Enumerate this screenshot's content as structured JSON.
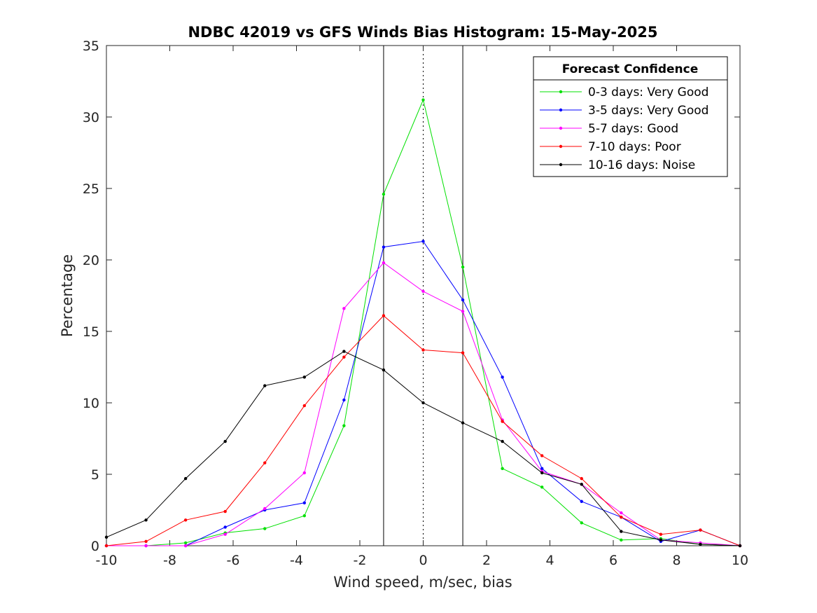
{
  "chart_data": {
    "type": "line",
    "title": "NDBC 42019 vs GFS Winds Bias Histogram: 15-May-2025",
    "xlabel": "Wind speed, m/sec, bias",
    "ylabel": "Percentage",
    "xlim": [
      -10,
      10
    ],
    "ylim": [
      0,
      35
    ],
    "xticks": [
      -10,
      -8,
      -6,
      -4,
      -2,
      0,
      2,
      4,
      6,
      8,
      10
    ],
    "yticks": [
      0,
      5,
      10,
      15,
      20,
      25,
      30,
      35
    ],
    "grid": false,
    "legend_title": "Forecast Confidence",
    "legend_position": "top-right",
    "x": [
      -10,
      -8.75,
      -7.5,
      -6.25,
      -5,
      -3.75,
      -2.5,
      -1.25,
      0,
      1.25,
      2.5,
      3.75,
      5,
      6.25,
      7.5,
      8.75,
      10
    ],
    "series": [
      {
        "name": "0-3 days: Very Good",
        "color": "#00e000",
        "values": [
          0,
          0,
          0.2,
          0.9,
          1.2,
          2.1,
          8.4,
          24.6,
          31.2,
          19.5,
          5.4,
          4.1,
          1.6,
          0.4,
          0.5,
          0.1,
          0
        ]
      },
      {
        "name": "3-5 days: Very Good",
        "color": "#0000ff",
        "values": [
          0,
          0,
          0,
          1.3,
          2.5,
          3.0,
          10.2,
          20.9,
          21.3,
          17.2,
          11.8,
          5.4,
          3.1,
          2.0,
          0.3,
          1.1,
          0
        ]
      },
      {
        "name": "5-7 days: Good",
        "color": "#ff00ff",
        "values": [
          0,
          0,
          0,
          0.8,
          2.6,
          5.1,
          16.6,
          19.8,
          17.8,
          16.4,
          8.8,
          5.2,
          4.3,
          2.3,
          0.4,
          0.2,
          0
        ]
      },
      {
        "name": "7-10 days: Poor",
        "color": "#ff0000",
        "values": [
          0,
          0.3,
          1.8,
          2.4,
          5.8,
          9.8,
          13.2,
          16.1,
          13.7,
          13.5,
          8.7,
          6.3,
          4.7,
          2.0,
          0.8,
          1.1,
          0
        ]
      },
      {
        "name": "10-16 days: Noise",
        "color": "#000000",
        "values": [
          0.6,
          1.8,
          4.7,
          7.3,
          11.2,
          11.8,
          13.6,
          12.3,
          10.0,
          8.6,
          7.3,
          5.1,
          4.3,
          1.0,
          0.4,
          0.1,
          0
        ]
      }
    ],
    "reference_lines": [
      {
        "x": -1.25,
        "style": "solid"
      },
      {
        "x": 0,
        "style": "dotted"
      },
      {
        "x": 1.25,
        "style": "solid"
      }
    ]
  }
}
